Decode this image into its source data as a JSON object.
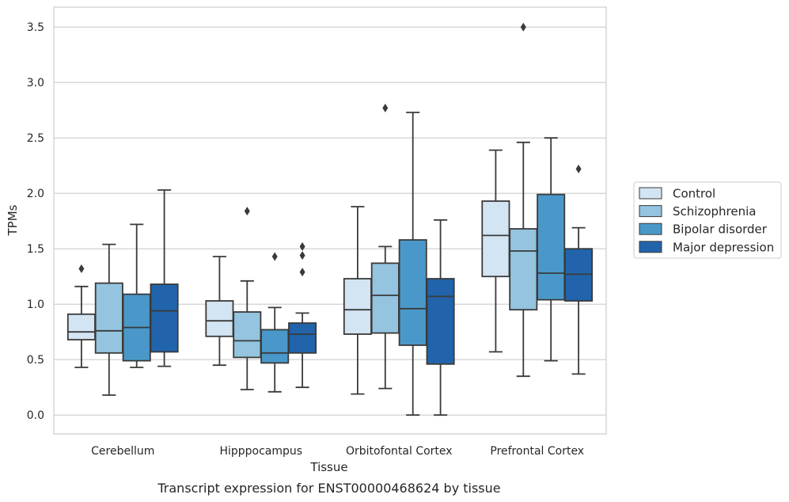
{
  "chart_data": {
    "type": "box",
    "xlabel": "Tissue",
    "ylabel": "TPMs",
    "caption": "Transcript expression for ENST00000468624 by tissue",
    "categories": [
      "Cerebellum",
      "Hipppocampus",
      "Orbitofontal Cortex",
      "Prefrontal Cortex"
    ],
    "ylim": [
      -0.17,
      3.68
    ],
    "yticks": [
      "0.0",
      "0.5",
      "1.0",
      "1.5",
      "2.0",
      "2.5",
      "3.0",
      "3.5"
    ],
    "grid": "horizontal",
    "legend_position": "right",
    "series": [
      {
        "name": "Control",
        "color": "#d3e4f3",
        "boxes": [
          {
            "whisker_low": 0.43,
            "q1": 0.68,
            "median": 0.75,
            "q3": 0.91,
            "whisker_high": 1.16,
            "outliers": [
              1.32
            ]
          },
          {
            "whisker_low": 0.45,
            "q1": 0.71,
            "median": 0.85,
            "q3": 1.03,
            "whisker_high": 1.43,
            "outliers": []
          },
          {
            "whisker_low": 0.19,
            "q1": 0.73,
            "median": 0.95,
            "q3": 1.23,
            "whisker_high": 1.88,
            "outliers": []
          },
          {
            "whisker_low": 0.57,
            "q1": 1.25,
            "median": 1.62,
            "q3": 1.93,
            "whisker_high": 2.39,
            "outliers": []
          }
        ]
      },
      {
        "name": "Schizophrenia",
        "color": "#94c4df",
        "boxes": [
          {
            "whisker_low": 0.18,
            "q1": 0.56,
            "median": 0.76,
            "q3": 1.19,
            "whisker_high": 1.54,
            "outliers": []
          },
          {
            "whisker_low": 0.23,
            "q1": 0.52,
            "median": 0.67,
            "q3": 0.93,
            "whisker_high": 1.21,
            "outliers": [
              1.84
            ]
          },
          {
            "whisker_low": 0.24,
            "q1": 0.74,
            "median": 1.08,
            "q3": 1.37,
            "whisker_high": 1.52,
            "outliers": [
              2.77
            ]
          },
          {
            "whisker_low": 0.35,
            "q1": 0.95,
            "median": 1.48,
            "q3": 1.68,
            "whisker_high": 2.46,
            "outliers": [
              3.5
            ]
          }
        ]
      },
      {
        "name": "Bipolar disorder",
        "color": "#4a98c9",
        "boxes": [
          {
            "whisker_low": 0.43,
            "q1": 0.49,
            "median": 0.79,
            "q3": 1.09,
            "whisker_high": 1.72,
            "outliers": []
          },
          {
            "whisker_low": 0.21,
            "q1": 0.47,
            "median": 0.56,
            "q3": 0.77,
            "whisker_high": 0.97,
            "outliers": [
              1.43
            ]
          },
          {
            "whisker_low": 0.0,
            "q1": 0.63,
            "median": 0.96,
            "q3": 1.58,
            "whisker_high": 2.73,
            "outliers": []
          },
          {
            "whisker_low": 0.49,
            "q1": 1.04,
            "median": 1.28,
            "q3": 1.99,
            "whisker_high": 2.5,
            "outliers": []
          }
        ]
      },
      {
        "name": "Major depression",
        "color": "#2164ab",
        "boxes": [
          {
            "whisker_low": 0.44,
            "q1": 0.57,
            "median": 0.94,
            "q3": 1.18,
            "whisker_high": 2.03,
            "outliers": []
          },
          {
            "whisker_low": 0.25,
            "q1": 0.56,
            "median": 0.73,
            "q3": 0.83,
            "whisker_high": 0.92,
            "outliers": [
              1.52,
              1.44,
              1.29
            ]
          },
          {
            "whisker_low": 0.0,
            "q1": 0.46,
            "median": 1.07,
            "q3": 1.23,
            "whisker_high": 1.76,
            "outliers": []
          },
          {
            "whisker_low": 0.37,
            "q1": 1.03,
            "median": 1.27,
            "q3": 1.5,
            "whisker_high": 1.69,
            "outliers": [
              2.22
            ]
          }
        ]
      }
    ]
  }
}
